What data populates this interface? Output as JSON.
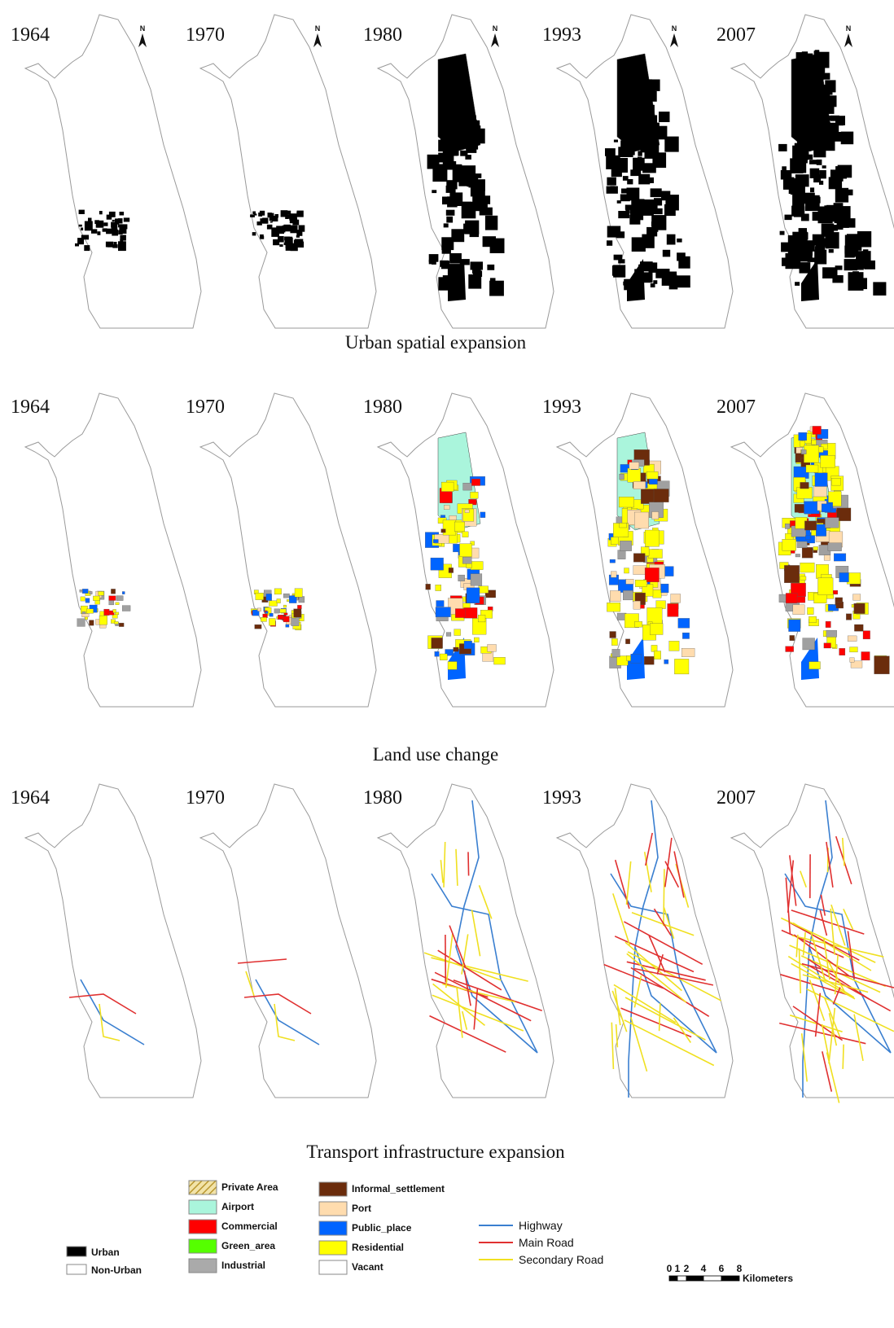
{
  "rows": [
    {
      "panels": [
        "1964",
        "1970",
        "1980",
        "1993",
        "2007"
      ],
      "caption": "Urban spatial expansion"
    },
    {
      "panels": [
        "1964",
        "1970",
        "1980",
        "1993",
        "2007"
      ],
      "caption": "Land use change"
    },
    {
      "panels": [
        "1964",
        "1970",
        "1980",
        "1993",
        "2007"
      ],
      "caption": "Transport infrastructure expansion"
    }
  ],
  "north_label": "N",
  "legend": {
    "urban": [
      "Urban",
      "Non-Urban"
    ],
    "land_use_a": [
      "Private Area",
      "Airport",
      "Commercial",
      "Green_area",
      "Industrial"
    ],
    "land_use_b": [
      "Informal_settlement",
      "Port",
      "Public_place",
      "Residential",
      "Vacant"
    ],
    "roads": [
      "Highway",
      "Main Road",
      "Secondary Road"
    ],
    "scale": {
      "ticks": [
        "0",
        "1",
        "2",
        "4",
        "6",
        "8"
      ],
      "unit": "Kilometers"
    }
  }
}
